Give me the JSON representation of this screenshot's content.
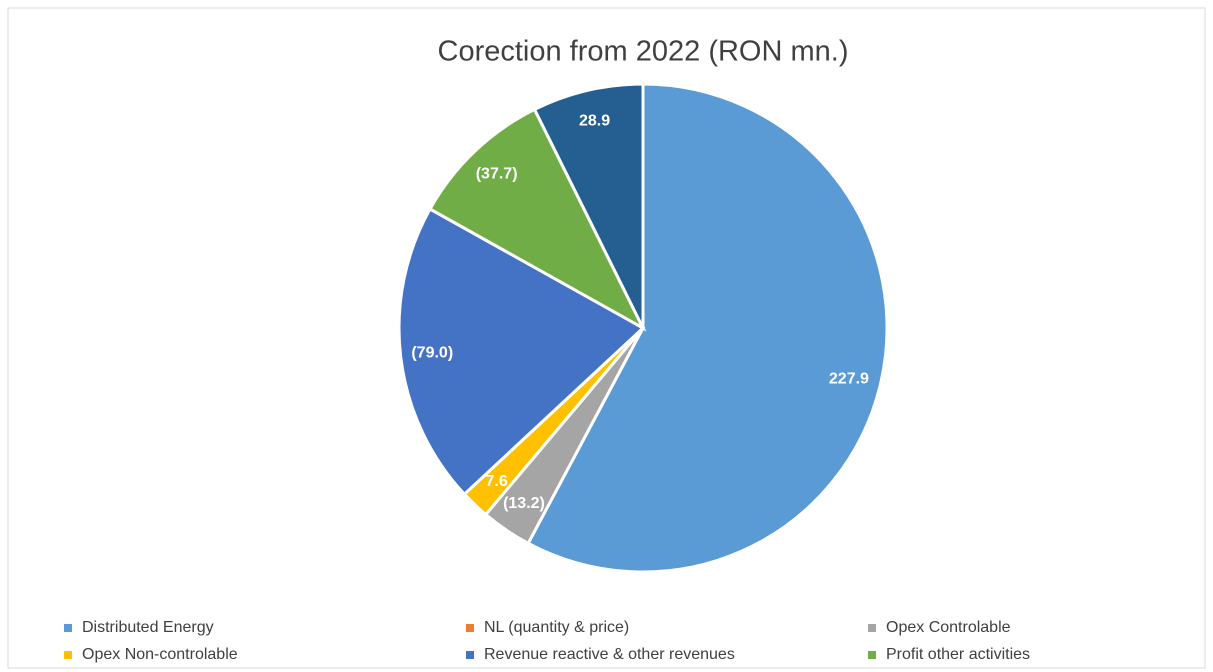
{
  "chart_data": {
    "type": "pie",
    "title": "Corection from 2022 (RON mn.)",
    "categories": [
      "Distributed Energy",
      "NL (quantity & price)",
      "Opex Controlable",
      "Opex Non-controlable",
      "Revenue reactive & other revenues",
      "Profit other activities",
      null
    ],
    "values": [
      227.9,
      0,
      -13.2,
      7.6,
      -79.0,
      -37.7,
      28.9
    ],
    "value_labels": [
      "227.9",
      null,
      "(13.2)",
      "7.6",
      "(79.0)",
      "(37.7)",
      "28.9"
    ],
    "colors": [
      "#5b9bd5",
      "#ed7d31",
      "#a5a5a5",
      "#ffc000",
      "#4472c4",
      "#70ad47",
      "#255e91"
    ],
    "legend": "bottom"
  }
}
